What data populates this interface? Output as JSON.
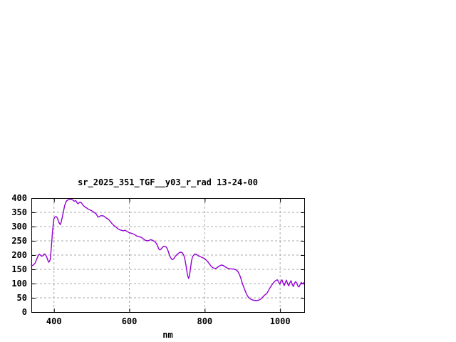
{
  "page": {
    "background": "#FFFFFF"
  },
  "chart": {
    "title": "sr_2025_351_TGF__y03_r_rad 13-24-00",
    "xlabel": "nm"
  },
  "chart_data": {
    "type": "line",
    "title": "sr_2025_351_TGF__y03_r_rad 13-24-00",
    "xlabel": "nm",
    "ylabel": "",
    "xlim": [
      340,
      1064
    ],
    "ylim": [
      0,
      400
    ],
    "xticks": [
      400,
      600,
      800,
      1000
    ],
    "yticks": [
      0,
      50,
      100,
      150,
      200,
      250,
      300,
      350,
      400
    ],
    "grid": true,
    "legend": "none",
    "colors": {
      "line": "#9400D3",
      "grid": "#A8A8A8",
      "border": "#000000",
      "text": "#000000"
    },
    "series": [
      {
        "name": "sr_2025_351_TGF__y03_r_rad",
        "points": [
          [
            340,
            165
          ],
          [
            343,
            163
          ],
          [
            346,
            166
          ],
          [
            350,
            172
          ],
          [
            354,
            185
          ],
          [
            358,
            197
          ],
          [
            361,
            203
          ],
          [
            364,
            200
          ],
          [
            367,
            196
          ],
          [
            371,
            198
          ],
          [
            374,
            204
          ],
          [
            377,
            202
          ],
          [
            380,
            195
          ],
          [
            383,
            185
          ],
          [
            386,
            175
          ],
          [
            388,
            177
          ],
          [
            390,
            185
          ],
          [
            392,
            210
          ],
          [
            394,
            245
          ],
          [
            396,
            280
          ],
          [
            398,
            308
          ],
          [
            400,
            328
          ],
          [
            403,
            334
          ],
          [
            406,
            335
          ],
          [
            409,
            330
          ],
          [
            412,
            318
          ],
          [
            415,
            310
          ],
          [
            417,
            307
          ],
          [
            419,
            315
          ],
          [
            422,
            333
          ],
          [
            425,
            352
          ],
          [
            428,
            372
          ],
          [
            431,
            384
          ],
          [
            434,
            391
          ],
          [
            438,
            394
          ],
          [
            442,
            395
          ],
          [
            446,
            396
          ],
          [
            450,
            393
          ],
          [
            454,
            389
          ],
          [
            458,
            391
          ],
          [
            461,
            384
          ],
          [
            464,
            380
          ],
          [
            467,
            384
          ],
          [
            470,
            386
          ],
          [
            473,
            383
          ],
          [
            477,
            375
          ],
          [
            481,
            370
          ],
          [
            486,
            366
          ],
          [
            491,
            361
          ],
          [
            496,
            358
          ],
          [
            501,
            355
          ],
          [
            506,
            350
          ],
          [
            511,
            346
          ],
          [
            514,
            340
          ],
          [
            517,
            333
          ],
          [
            520,
            335
          ],
          [
            524,
            338
          ],
          [
            528,
            338
          ],
          [
            532,
            337
          ],
          [
            536,
            333
          ],
          [
            540,
            329
          ],
          [
            545,
            325
          ],
          [
            550,
            317
          ],
          [
            555,
            309
          ],
          [
            559,
            304
          ],
          [
            564,
            299
          ],
          [
            569,
            293
          ],
          [
            574,
            289
          ],
          [
            579,
            287
          ],
          [
            584,
            285
          ],
          [
            589,
            287
          ],
          [
            594,
            283
          ],
          [
            599,
            279
          ],
          [
            604,
            277
          ],
          [
            609,
            275
          ],
          [
            614,
            272
          ],
          [
            618,
            268
          ],
          [
            622,
            266
          ],
          [
            627,
            264
          ],
          [
            632,
            262
          ],
          [
            636,
            258
          ],
          [
            640,
            254
          ],
          [
            644,
            251
          ],
          [
            648,
            250
          ],
          [
            652,
            251
          ],
          [
            656,
            254
          ],
          [
            660,
            253
          ],
          [
            664,
            250
          ],
          [
            668,
            247
          ],
          [
            672,
            240
          ],
          [
            675,
            232
          ],
          [
            678,
            222
          ],
          [
            681,
            218
          ],
          [
            684,
            221
          ],
          [
            687,
            226
          ],
          [
            690,
            230
          ],
          [
            694,
            231
          ],
          [
            697,
            229
          ],
          [
            700,
            224
          ],
          [
            703,
            214
          ],
          [
            706,
            202
          ],
          [
            709,
            192
          ],
          [
            712,
            186
          ],
          [
            715,
            184
          ],
          [
            718,
            188
          ],
          [
            721,
            194
          ],
          [
            725,
            200
          ],
          [
            729,
            205
          ],
          [
            733,
            209
          ],
          [
            737,
            210
          ],
          [
            741,
            208
          ],
          [
            745,
            198
          ],
          [
            748,
            182
          ],
          [
            751,
            158
          ],
          [
            754,
            132
          ],
          [
            757,
            118
          ],
          [
            759,
            125
          ],
          [
            762,
            150
          ],
          [
            765,
            180
          ],
          [
            768,
            195
          ],
          [
            771,
            200
          ],
          [
            774,
            204
          ],
          [
            777,
            203
          ],
          [
            781,
            199
          ],
          [
            785,
            196
          ],
          [
            789,
            194
          ],
          [
            793,
            192
          ],
          [
            797,
            189
          ],
          [
            801,
            186
          ],
          [
            805,
            181
          ],
          [
            809,
            175
          ],
          [
            813,
            168
          ],
          [
            817,
            161
          ],
          [
            821,
            156
          ],
          [
            825,
            154
          ],
          [
            829,
            153
          ],
          [
            833,
            156
          ],
          [
            838,
            161
          ],
          [
            842,
            164
          ],
          [
            846,
            165
          ],
          [
            850,
            163
          ],
          [
            854,
            159
          ],
          [
            858,
            156
          ],
          [
            862,
            153
          ],
          [
            867,
            152
          ],
          [
            872,
            151
          ],
          [
            877,
            151
          ],
          [
            882,
            149
          ],
          [
            887,
            144
          ],
          [
            891,
            135
          ],
          [
            895,
            122
          ],
          [
            900,
            100
          ],
          [
            904,
            86
          ],
          [
            908,
            72
          ],
          [
            912,
            60
          ],
          [
            916,
            52
          ],
          [
            920,
            47
          ],
          [
            924,
            44
          ],
          [
            928,
            42
          ],
          [
            932,
            41
          ],
          [
            936,
            40
          ],
          [
            940,
            41
          ],
          [
            944,
            42
          ],
          [
            948,
            45
          ],
          [
            952,
            50
          ],
          [
            956,
            56
          ],
          [
            960,
            61
          ],
          [
            963,
            63
          ],
          [
            966,
            68
          ],
          [
            970,
            78
          ],
          [
            974,
            87
          ],
          [
            978,
            95
          ],
          [
            982,
            102
          ],
          [
            986,
            108
          ],
          [
            990,
            112
          ],
          [
            993,
            113
          ],
          [
            996,
            106
          ],
          [
            999,
            98
          ],
          [
            1002,
            107
          ],
          [
            1005,
            113
          ],
          [
            1008,
            101
          ],
          [
            1011,
            93
          ],
          [
            1014,
            104
          ],
          [
            1017,
            112
          ],
          [
            1020,
            99
          ],
          [
            1023,
            92
          ],
          [
            1026,
            103
          ],
          [
            1029,
            110
          ],
          [
            1032,
            97
          ],
          [
            1035,
            90
          ],
          [
            1038,
            100
          ],
          [
            1041,
            107
          ],
          [
            1044,
            102
          ],
          [
            1047,
            92
          ],
          [
            1050,
            88
          ],
          [
            1053,
            96
          ],
          [
            1056,
            104
          ],
          [
            1059,
            99
          ],
          [
            1062,
            102
          ],
          [
            1064,
            104
          ]
        ]
      }
    ]
  }
}
